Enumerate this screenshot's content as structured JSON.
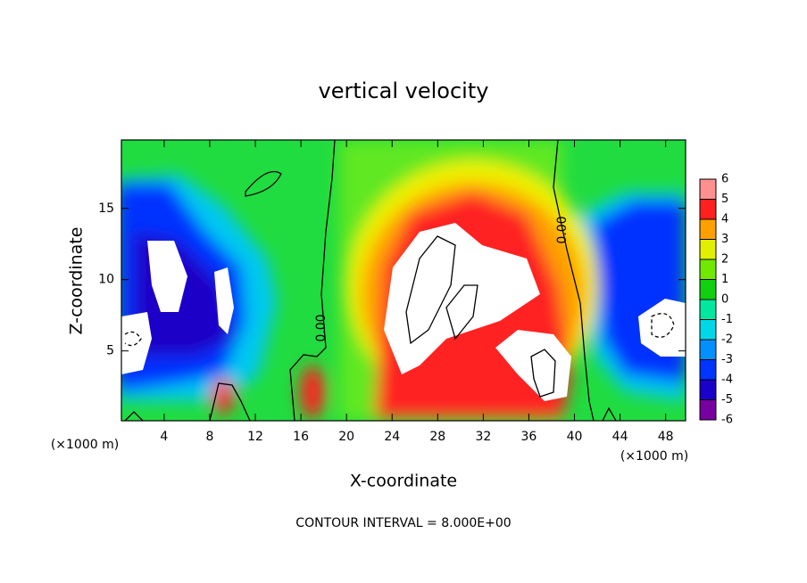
{
  "chart_data": {
    "type": "contour",
    "title": "vertical velocity",
    "xlabel": "X-coordinate",
    "ylabel": "Z-coordinate",
    "x_unit_label": "(×1000 m)",
    "xlim": [
      0.25,
      49.75
    ],
    "ylim": [
      0.1,
      19.8
    ],
    "xticks": [
      4,
      8,
      12,
      16,
      20,
      24,
      28,
      32,
      36,
      40,
      44,
      48
    ],
    "yticks": [
      5,
      10,
      15
    ],
    "contour_label": "0.00",
    "footer": "CONTOUR INTERVAL = 8.000E+00",
    "colorbar": {
      "levels": [
        -6,
        -5,
        -4,
        -3,
        -2,
        -1,
        0,
        1,
        2,
        3,
        4,
        5,
        6
      ],
      "colors": [
        "#7800a0",
        "#1a00c8",
        "#0034ff",
        "#0090ff",
        "#00d8e8",
        "#00e8a0",
        "#10d010",
        "#70e800",
        "#e0f000",
        "#ffa000",
        "#ff2020",
        "#ff9090"
      ]
    }
  }
}
